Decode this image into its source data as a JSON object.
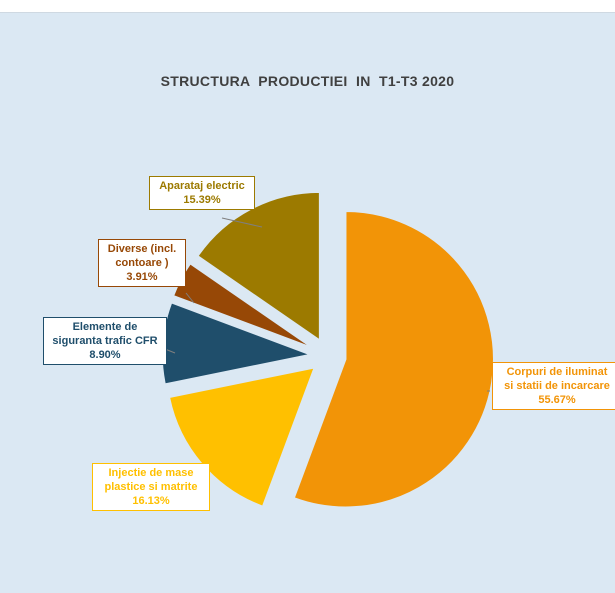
{
  "chart_data": {
    "type": "pie",
    "title": "STRUCTURA  PRODUCTIEI  IN  T1-T3 2020",
    "slices": [
      {
        "label_lines": [
          "Corpuri de iluminat",
          "si statii de incarcare"
        ],
        "value": 55.67,
        "value_text": "55.67%",
        "color": "#f29407",
        "text_color": "#f29407"
      },
      {
        "label_lines": [
          "Injectie de mase",
          "plastice si matrite"
        ],
        "value": 16.13,
        "value_text": "16.13%",
        "color": "#ffc000",
        "text_color": "#ffc000"
      },
      {
        "label_lines": [
          "Elemente de",
          "siguranta trafic CFR"
        ],
        "value": 8.9,
        "value_text": "8.90%",
        "color": "#1f4e6b",
        "text_color": "#1f4e6b"
      },
      {
        "label_lines": [
          "Diverse (incl.",
          "contoare )"
        ],
        "value": 3.91,
        "value_text": "3.91%",
        "color": "#974806",
        "text_color": "#974806"
      },
      {
        "label_lines": [
          "Aparataj electric"
        ],
        "value": 15.39,
        "value_text": "15.39%",
        "color": "#9c7a00",
        "text_color": "#9c7a00"
      }
    ]
  }
}
